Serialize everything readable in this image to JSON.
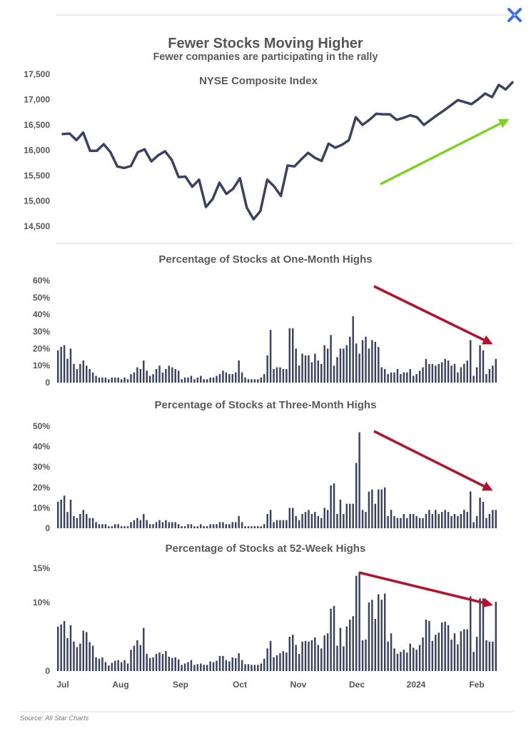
{
  "header": {
    "title": "Fewer Stocks Moving Higher",
    "subtitle": "Fewer companies are participating in the rally",
    "logo_icon": "x-logo-icon"
  },
  "footer": {
    "source": "Source:  All Star Charts"
  },
  "colors": {
    "line": "#3b4161",
    "bars": "#3b4161",
    "up_arrow": "#7ed321",
    "down_arrow": "#b3122e",
    "rule": "#d9d9d9"
  },
  "x_axis": {
    "labels": [
      "Jul",
      "Aug",
      "Sep",
      "Oct",
      "Nov",
      "Dec",
      "2024",
      "Feb"
    ]
  },
  "chart_data": [
    {
      "type": "line",
      "title": "NYSE Composite Index",
      "ylim": [
        14400,
        17600
      ],
      "yticks": [
        14500,
        15000,
        15500,
        16000,
        16500,
        17000,
        17500
      ],
      "ytick_labels": [
        "14,500",
        "15,000",
        "15,500",
        "16,000",
        "16,500",
        "17,000",
        "17,500"
      ],
      "values": [
        16320,
        16330,
        16200,
        16350,
        15990,
        15990,
        16120,
        15960,
        15680,
        15650,
        15690,
        15960,
        16020,
        15780,
        15900,
        15980,
        15810,
        15470,
        15480,
        15280,
        15420,
        14880,
        15040,
        15360,
        15140,
        15240,
        15450,
        14870,
        14640,
        14800,
        15420,
        15290,
        15100,
        15700,
        15680,
        15820,
        15950,
        15850,
        15790,
        16130,
        16050,
        16110,
        16200,
        16650,
        16500,
        16600,
        16720,
        16710,
        16710,
        16600,
        16640,
        16690,
        16650,
        16500,
        16600,
        16700,
        16790,
        16890,
        16990,
        16950,
        16910,
        17010,
        17120,
        17050,
        17290,
        17200,
        17340
      ],
      "annotation": "green up arrow"
    },
    {
      "type": "bar",
      "title": "Percentage of Stocks at One-Month Highs",
      "ylim": [
        0,
        63
      ],
      "yticks": [
        0,
        10,
        20,
        30,
        40,
        50,
        60
      ],
      "ytick_labels": [
        "0",
        "10%",
        "20%",
        "30%",
        "40%",
        "50%",
        "60%"
      ],
      "values": [
        19,
        21,
        22,
        14,
        20,
        11,
        8,
        11,
        13,
        10,
        8,
        6,
        4,
        3,
        3,
        3,
        2,
        3,
        3,
        3,
        2,
        3,
        2,
        5,
        6,
        9,
        8,
        13,
        7,
        4,
        5,
        8,
        10,
        6,
        8,
        10,
        9,
        8,
        7,
        2,
        3,
        3,
        4,
        2,
        3,
        4,
        2,
        2,
        3,
        3,
        4,
        5,
        7,
        6,
        5,
        5,
        6,
        13,
        6,
        3,
        2,
        2,
        2,
        2,
        3,
        5,
        16,
        31,
        8,
        9,
        9,
        8,
        8,
        32,
        32,
        20,
        10,
        17,
        16,
        16,
        12,
        17,
        13,
        11,
        22,
        20,
        28,
        10,
        15,
        20,
        20,
        22,
        27,
        39,
        23,
        17,
        25,
        27,
        20,
        25,
        24,
        21,
        9,
        8,
        5,
        6,
        6,
        8,
        5,
        6,
        6,
        8,
        4,
        5,
        7,
        9,
        14,
        11,
        11,
        10,
        11,
        12,
        14,
        13,
        10,
        11,
        6,
        9,
        11,
        13,
        25,
        4,
        9,
        22,
        19,
        5,
        8,
        10,
        14
      ],
      "annotation": "red down arrow"
    },
    {
      "type": "bar",
      "title": "Percentage of Stocks at Three-Month Highs",
      "ylim": [
        0,
        51
      ],
      "yticks": [
        0,
        10,
        20,
        30,
        40,
        50
      ],
      "ytick_labels": [
        "0",
        "10%",
        "20%",
        "30%",
        "40%",
        "50%"
      ],
      "values": [
        13,
        14,
        16,
        8,
        14,
        6,
        5,
        7,
        9,
        7,
        5,
        5,
        3,
        2,
        2,
        2,
        1,
        1,
        2,
        2,
        1,
        1,
        1,
        3,
        4,
        5,
        4,
        7,
        4,
        2,
        2,
        3,
        4,
        3,
        4,
        3,
        3,
        3,
        2,
        1,
        1,
        2,
        2,
        1,
        1,
        2,
        1,
        1,
        2,
        2,
        2,
        3,
        3,
        2,
        2,
        3,
        3,
        6,
        3,
        1,
        1,
        1,
        1,
        1,
        1,
        2,
        7,
        9,
        3,
        4,
        4,
        4,
        4,
        10,
        10,
        6,
        4,
        7,
        8,
        9,
        7,
        8,
        6,
        5,
        10,
        9,
        21,
        22,
        7,
        14,
        7,
        12,
        12,
        12,
        32,
        47,
        9,
        8,
        18,
        19,
        12,
        19,
        19,
        20,
        6,
        9,
        6,
        5,
        5,
        7,
        5,
        7,
        7,
        6,
        5,
        5,
        7,
        9,
        7,
        9,
        7,
        8,
        9,
        8,
        6,
        7,
        6,
        7,
        9,
        8,
        18,
        3,
        6,
        15,
        13,
        5,
        7,
        9,
        9
      ],
      "annotation": "red down arrow"
    },
    {
      "type": "bar",
      "title": "Percentage of Stocks at 52-Week Highs",
      "ylim": [
        0,
        15.5
      ],
      "yticks": [
        0,
        10,
        15
      ],
      "ytick_labels": [
        "0",
        "10%",
        "15%"
      ],
      "values": [
        6.5,
        6.8,
        7.3,
        4.8,
        6.7,
        4.3,
        3.5,
        4.0,
        5.9,
        5.7,
        4.2,
        3.7,
        2.0,
        1.8,
        2.0,
        1.3,
        0.8,
        1.2,
        1.5,
        1.6,
        1.3,
        1.6,
        1.1,
        3.1,
        3.7,
        4.5,
        3.8,
        6.3,
        2.5,
        1.9,
        2.0,
        2.5,
        2.7,
        2.5,
        2.9,
        2.1,
        1.9,
        2.0,
        1.7,
        0.9,
        1.1,
        1.3,
        1.6,
        0.9,
        1.0,
        1.1,
        0.9,
        0.9,
        1.4,
        1.3,
        1.5,
        2.2,
        2.2,
        1.6,
        1.4,
        2.0,
        1.9,
        2.6,
        1.6,
        1.0,
        1.0,
        0.9,
        0.9,
        0.9,
        1.1,
        1.8,
        3.3,
        4.4,
        2.0,
        2.3,
        2.6,
        2.9,
        2.7,
        5.0,
        5.3,
        3.8,
        2.5,
        4.3,
        4.4,
        4.3,
        4.5,
        4.9,
        3.8,
        3.3,
        5.2,
        5.5,
        9.1,
        9.5,
        3.7,
        6.3,
        3.6,
        6.5,
        7.5,
        8.0,
        13.9,
        14.4,
        4.5,
        4.6,
        10.0,
        10.4,
        7.6,
        11.2,
        10.4,
        11.3,
        4.3,
        5.5,
        3.3,
        2.5,
        2.8,
        3.1,
        2.7,
        4.0,
        3.4,
        3.1,
        3.8,
        4.9,
        7.5,
        7.3,
        4.4,
        5.3,
        5.6,
        7.1,
        7.2,
        6.7,
        4.6,
        5.5,
        3.9,
        5.8,
        6.1,
        6.1,
        10.9,
        2.8,
        5.0,
        10.6,
        10.6,
        4.5,
        4.3,
        4.3,
        10.1
      ],
      "annotation": "red down arrow"
    }
  ]
}
